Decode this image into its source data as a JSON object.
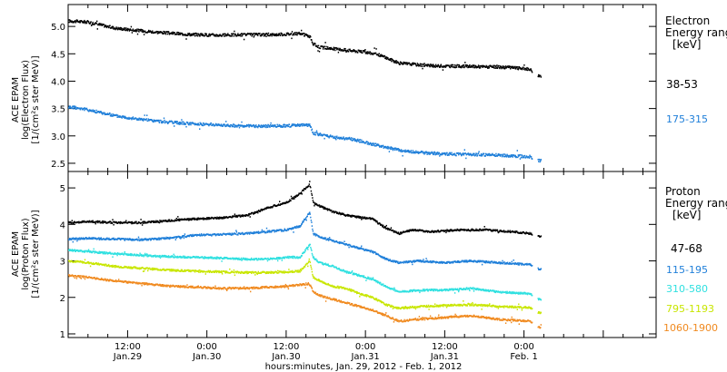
{
  "figure": {
    "xlabel": "hours:minutes, Jan. 29, 2012 - Feb. 1, 2012",
    "x_ticks": [
      {
        "t": 12,
        "top": "12:00",
        "bottom": "Jan.29"
      },
      {
        "t": 24,
        "top": "0:00",
        "bottom": "Jan.30"
      },
      {
        "t": 36,
        "top": "12:00",
        "bottom": "Jan.30"
      },
      {
        "t": 48,
        "top": "0:00",
        "bottom": "Jan.31"
      },
      {
        "t": 60,
        "top": "12:00",
        "bottom": "Jan.31"
      },
      {
        "t": 72,
        "top": "0:00",
        "bottom": "Feb. 1"
      }
    ]
  },
  "chart_data": [
    {
      "type": "scatter",
      "panel": "electron",
      "ylabel_lines": [
        "ACE EPAM",
        "log(Electron Flux)",
        "[1/(cm²s ster MeV)]"
      ],
      "legend_title_lines": [
        "Electron",
        "Energy range",
        "[keV]"
      ],
      "ylim": [
        2.35,
        5.4
      ],
      "yticks": [
        2.5,
        3.0,
        3.5,
        4.0,
        4.5,
        5.0
      ],
      "ytick_labels": [
        "2.5",
        "3.0",
        "3.5",
        "4.0",
        "4.5",
        "5.0"
      ],
      "xlim_hours": [
        3,
        92
      ],
      "series": [
        {
          "name": "38-53",
          "color": "#000000",
          "x": [
            3,
            6,
            10,
            14,
            18,
            22,
            26,
            30,
            34,
            38,
            39.5,
            40,
            41,
            44,
            48,
            50,
            53,
            58,
            64,
            70,
            72.8,
            74,
            74.5
          ],
          "y": [
            5.1,
            5.08,
            4.97,
            4.92,
            4.88,
            4.85,
            4.84,
            4.85,
            4.85,
            4.87,
            4.82,
            4.68,
            4.62,
            4.58,
            4.53,
            4.48,
            4.33,
            4.28,
            4.27,
            4.25,
            4.22,
            4.1,
            4.1
          ]
        },
        {
          "name": "175-315",
          "color": "#1f7fd9",
          "x": [
            3,
            5,
            10,
            14,
            18,
            22,
            26,
            30,
            34,
            39.5,
            40,
            43,
            46,
            48,
            50,
            53,
            56,
            60,
            64,
            68,
            72.8,
            74,
            74.5
          ],
          "y": [
            3.53,
            3.5,
            3.37,
            3.3,
            3.25,
            3.22,
            3.2,
            3.18,
            3.18,
            3.2,
            3.05,
            2.98,
            2.94,
            2.88,
            2.82,
            2.74,
            2.7,
            2.67,
            2.66,
            2.65,
            2.62,
            2.55,
            2.55
          ]
        }
      ]
    },
    {
      "type": "scatter",
      "panel": "proton",
      "ylabel_lines": [
        "ACE EPAM",
        "log(Proton Flux)",
        "[1/(cm²s ster MeV)]"
      ],
      "legend_title_lines": [
        "Proton",
        "Energy range",
        "[keV]"
      ],
      "ylim": [
        0.9,
        5.45
      ],
      "yticks": [
        1,
        2,
        3,
        4,
        5
      ],
      "ytick_labels": [
        "1",
        "2",
        "3",
        "4",
        "5"
      ],
      "xlim_hours": [
        3,
        92
      ],
      "series": [
        {
          "name": "47-68",
          "color": "#000000",
          "x": [
            3,
            6,
            10,
            14,
            18,
            22,
            26,
            30,
            33,
            36,
            38,
            39.5,
            40,
            41,
            43,
            45,
            47,
            49,
            51,
            53,
            55,
            58,
            62,
            66,
            70,
            72.8,
            74,
            74.5
          ],
          "y": [
            4.05,
            4.08,
            4.05,
            4.05,
            4.1,
            4.15,
            4.18,
            4.25,
            4.45,
            4.6,
            4.85,
            5.1,
            4.6,
            4.5,
            4.35,
            4.25,
            4.2,
            4.15,
            3.9,
            3.75,
            3.85,
            3.8,
            3.85,
            3.85,
            3.8,
            3.75,
            3.68,
            3.68
          ]
        },
        {
          "name": "115-195",
          "color": "#1f7fd9",
          "x": [
            3,
            6,
            10,
            14,
            18,
            22,
            26,
            30,
            33,
            36,
            38,
            39.5,
            40,
            41,
            43,
            45,
            47,
            49,
            51,
            53,
            56,
            60,
            64,
            68,
            72.8,
            74,
            74.5
          ],
          "y": [
            3.6,
            3.62,
            3.6,
            3.58,
            3.62,
            3.7,
            3.72,
            3.75,
            3.8,
            3.85,
            3.95,
            4.35,
            3.75,
            3.65,
            3.55,
            3.45,
            3.35,
            3.25,
            3.05,
            2.95,
            3.0,
            2.95,
            3.0,
            2.95,
            2.9,
            2.78,
            2.78
          ]
        },
        {
          "name": "310-580",
          "color": "#2fe0e0",
          "x": [
            3,
            6,
            10,
            14,
            18,
            22,
            26,
            30,
            33,
            36,
            38,
            39.5,
            40,
            41,
            43,
            45,
            47,
            49,
            51,
            53,
            56,
            60,
            64,
            68,
            72.8,
            74,
            74.5
          ],
          "y": [
            3.3,
            3.25,
            3.2,
            3.15,
            3.12,
            3.1,
            3.08,
            3.05,
            3.05,
            3.1,
            3.1,
            3.45,
            3.1,
            2.95,
            2.85,
            2.7,
            2.6,
            2.5,
            2.3,
            2.15,
            2.2,
            2.2,
            2.25,
            2.15,
            2.1,
            1.95,
            1.95
          ]
        },
        {
          "name": "795-1193",
          "color": "#c8e600",
          "x": [
            3,
            6,
            10,
            14,
            18,
            22,
            26,
            30,
            33,
            36,
            38,
            39.5,
            40,
            41,
            43,
            45,
            47,
            49,
            51,
            53,
            56,
            60,
            64,
            68,
            72.8,
            74,
            74.5
          ],
          "y": [
            3.0,
            2.95,
            2.85,
            2.8,
            2.75,
            2.72,
            2.7,
            2.68,
            2.68,
            2.7,
            2.72,
            3.0,
            2.55,
            2.45,
            2.3,
            2.25,
            2.1,
            2.0,
            1.8,
            1.7,
            1.75,
            1.78,
            1.8,
            1.75,
            1.72,
            1.58,
            1.58
          ]
        },
        {
          "name": "1060-1900",
          "color": "#f08a20",
          "x": [
            3,
            6,
            10,
            14,
            18,
            22,
            26,
            30,
            33,
            36,
            38,
            39.5,
            40,
            41,
            43,
            45,
            47,
            49,
            51,
            53,
            56,
            60,
            64,
            68,
            72.8,
            74,
            74.5
          ],
          "y": [
            2.6,
            2.55,
            2.45,
            2.38,
            2.32,
            2.28,
            2.25,
            2.25,
            2.28,
            2.3,
            2.35,
            2.35,
            2.15,
            2.05,
            1.95,
            1.85,
            1.75,
            1.65,
            1.5,
            1.35,
            1.4,
            1.45,
            1.5,
            1.4,
            1.35,
            1.18,
            1.18
          ]
        }
      ]
    }
  ]
}
